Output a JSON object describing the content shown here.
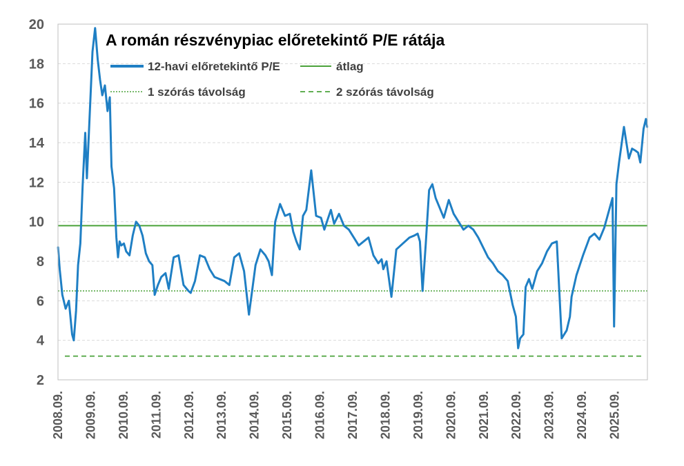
{
  "chart_data": {
    "type": "line",
    "title": "A román részvénypiac előretekintő P/E rátája",
    "xlabel": "",
    "ylabel": "",
    "ylim": [
      2,
      20
    ],
    "yticks": [
      2,
      4,
      6,
      8,
      10,
      12,
      14,
      16,
      18,
      20
    ],
    "xlim": [
      2008.667,
      2026.667
    ],
    "xtick_positions": [
      2008.667,
      2009.667,
      2010.667,
      2011.667,
      2012.667,
      2013.667,
      2014.667,
      2015.667,
      2016.667,
      2017.667,
      2018.667,
      2019.667,
      2020.667,
      2021.667,
      2022.667,
      2023.667,
      2024.667,
      2025.667
    ],
    "xtick_labels": [
      "2008.09.",
      "2009.09.",
      "2010.09.",
      "2011.09.",
      "2012.09.",
      "2013.09.",
      "2014.09.",
      "2015.09.",
      "2016.09.",
      "2017.09.",
      "2018.09.",
      "2019.09.",
      "2020.09.",
      "2021.09.",
      "2022.09.",
      "2023.09.",
      "2024.09.",
      "2025.09."
    ],
    "grid": "horizontal",
    "legend": "top-left",
    "colors": {
      "series": "#1f7fc4",
      "mean": "#4aa23a",
      "sd": "#4aa23a",
      "axis": "#bfbfbf",
      "grid": "#d9d9d9",
      "tick_text": "#595959"
    },
    "series": [
      {
        "name": "12-havi előretekintő P/E",
        "x": [
          2008.67,
          2008.72,
          2008.8,
          2008.9,
          2009.0,
          2009.1,
          2009.15,
          2009.22,
          2009.28,
          2009.35,
          2009.42,
          2009.5,
          2009.55,
          2009.6,
          2009.67,
          2009.72,
          2009.8,
          2009.88,
          2009.95,
          2010.02,
          2010.1,
          2010.18,
          2010.25,
          2010.3,
          2010.38,
          2010.45,
          2010.5,
          2010.55,
          2010.6,
          2010.68,
          2010.75,
          2010.85,
          2010.95,
          2011.05,
          2011.15,
          2011.25,
          2011.35,
          2011.45,
          2011.55,
          2011.62,
          2011.72,
          2011.82,
          2011.95,
          2012.05,
          2012.2,
          2012.35,
          2012.5,
          2012.65,
          2012.72,
          2012.85,
          2013.0,
          2013.15,
          2013.3,
          2013.45,
          2013.6,
          2013.75,
          2013.9,
          2014.05,
          2014.2,
          2014.35,
          2014.5,
          2014.7,
          2014.85,
          2015.0,
          2015.1,
          2015.2,
          2015.3,
          2015.45,
          2015.6,
          2015.75,
          2015.85,
          2015.95,
          2016.05,
          2016.15,
          2016.25,
          2016.4,
          2016.55,
          2016.7,
          2016.8,
          2016.9,
          2017.0,
          2017.1,
          2017.25,
          2017.4,
          2017.55,
          2017.7,
          2017.85,
          2018.0,
          2018.15,
          2018.3,
          2018.45,
          2018.55,
          2018.6,
          2018.7,
          2018.85,
          2019.0,
          2019.2,
          2019.4,
          2019.55,
          2019.65,
          2019.72,
          2019.8,
          2019.9,
          2020.0,
          2020.1,
          2020.2,
          2020.3,
          2020.45,
          2020.6,
          2020.75,
          2020.9,
          2021.05,
          2021.2,
          2021.35,
          2021.5,
          2021.65,
          2021.8,
          2021.95,
          2022.1,
          2022.25,
          2022.4,
          2022.55,
          2022.65,
          2022.72,
          2022.78,
          2022.88,
          2022.95,
          2023.05,
          2023.15,
          2023.3,
          2023.45,
          2023.6,
          2023.75,
          2023.9,
          2024.05,
          2024.2,
          2024.3,
          2024.35,
          2024.5,
          2024.7,
          2024.9,
          2025.05,
          2025.2,
          2025.35,
          2025.5,
          2025.6,
          2025.65,
          2025.72,
          2025.8,
          2025.95,
          2026.1,
          2026.2,
          2026.3,
          2026.38,
          2026.45,
          2026.55,
          2026.62,
          2026.66
        ],
        "y": [
          8.7,
          7.6,
          6.3,
          5.6,
          6.0,
          4.3,
          4.0,
          5.5,
          7.8,
          8.9,
          11.8,
          14.5,
          12.2,
          14.1,
          16.7,
          18.6,
          19.8,
          18.2,
          17.2,
          16.4,
          16.9,
          15.6,
          16.3,
          12.8,
          11.7,
          9.2,
          8.2,
          9.0,
          8.8,
          8.9,
          8.5,
          8.3,
          9.3,
          10.0,
          9.8,
          9.3,
          8.4,
          8.0,
          7.8,
          6.3,
          6.8,
          7.2,
          7.4,
          6.6,
          8.2,
          8.3,
          6.8,
          6.5,
          6.4,
          7.0,
          8.3,
          8.2,
          7.6,
          7.2,
          7.1,
          7.0,
          6.8,
          8.2,
          8.4,
          7.5,
          5.3,
          7.8,
          8.6,
          8.3,
          8.0,
          7.3,
          10.0,
          10.9,
          10.3,
          10.4,
          9.5,
          9.0,
          8.6,
          10.3,
          10.6,
          12.6,
          10.3,
          10.2,
          9.6,
          10.1,
          10.6,
          9.9,
          10.4,
          9.8,
          9.6,
          9.2,
          8.8,
          9.0,
          9.2,
          8.3,
          7.9,
          8.1,
          7.6,
          8.0,
          6.2,
          8.6,
          8.9,
          9.2,
          9.3,
          9.4,
          9.0,
          6.5,
          8.9,
          11.6,
          11.9,
          11.2,
          10.8,
          10.2,
          11.1,
          10.4,
          10.0,
          9.6,
          9.8,
          9.6,
          9.2,
          8.7,
          8.2,
          7.9,
          7.5,
          7.3,
          7.0,
          5.8,
          5.2,
          3.6,
          4.1,
          4.3,
          6.7,
          7.1,
          6.6,
          7.5,
          7.9,
          8.5,
          8.9,
          9.0,
          4.1,
          4.5,
          5.2,
          6.2,
          7.3,
          8.3,
          9.2,
          9.4,
          9.1,
          9.7,
          10.6,
          11.2,
          4.7,
          11.9,
          13.0,
          14.8,
          13.2,
          13.7,
          13.6,
          13.5,
          13.0,
          14.7,
          15.2,
          14.8
        ]
      },
      {
        "name": "átlag",
        "value": 9.8
      },
      {
        "name": "1 szórás távolság",
        "value": 6.5
      },
      {
        "name": "2 szórás távolság",
        "value": 3.2
      }
    ]
  }
}
